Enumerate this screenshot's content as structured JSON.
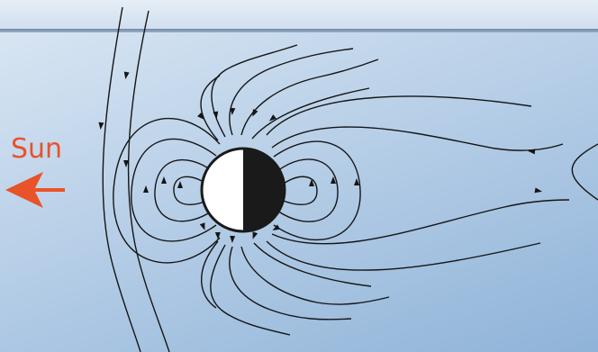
{
  "labels": {
    "sun": "Sun"
  },
  "colors": {
    "sun_text": "#e8532a",
    "sun_arrow": "#e8532a",
    "field_lines": "#151515",
    "planet_day": "#ffffff",
    "planet_night": "#1a1a1a"
  },
  "icons": {
    "sun_arrow": "arrow-left-icon"
  }
}
